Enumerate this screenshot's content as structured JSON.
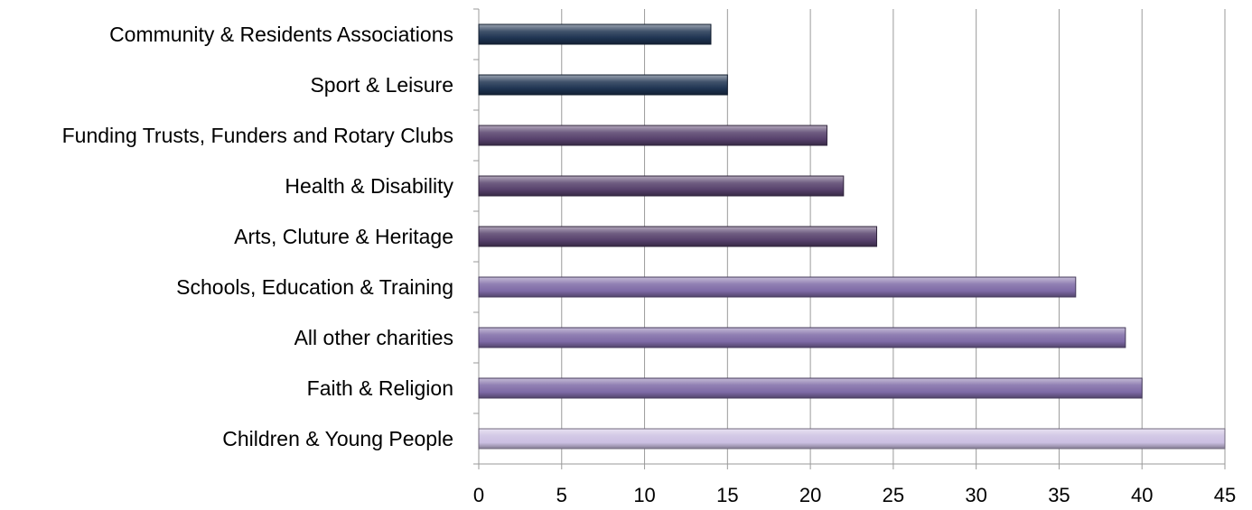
{
  "chart_data": {
    "type": "bar",
    "orientation": "horizontal",
    "title": "",
    "xlabel": "",
    "ylabel": "",
    "xlim": [
      0,
      45
    ],
    "x_ticks": [
      0,
      5,
      10,
      15,
      20,
      25,
      30,
      35,
      40,
      45
    ],
    "grid": "vertical",
    "legend": "none",
    "categories": [
      "Community & Residents Associations",
      "Sport & Leisure",
      "Funding Trusts, Funders and Rotary Clubs",
      "Health & Disability",
      "Arts, Cluture & Heritage",
      "Schools, Education & Training",
      "All other charities",
      "Faith & Religion",
      "Children & Young People"
    ],
    "values": [
      14,
      15,
      21,
      22,
      24,
      36,
      39,
      40,
      45
    ],
    "bar_colors": [
      "#1e3351",
      "#1e3351",
      "#56406b",
      "#56406b",
      "#56406b",
      "#7e6aa6",
      "#7e6aa6",
      "#7e6aa6",
      "#cbbfe2"
    ]
  }
}
